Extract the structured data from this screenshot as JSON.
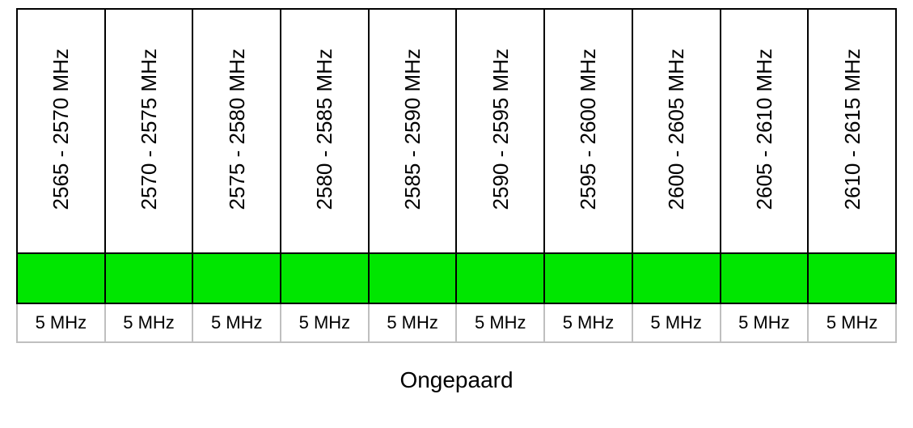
{
  "spectrum_table": {
    "type": "table",
    "caption": "Ongepaard",
    "caption_fontsize": 28,
    "range_fontsize": 26,
    "bw_fontsize": 22,
    "border_color_main": "#000000",
    "border_color_bw_row": "#bfbfbf",
    "background_color": "#ffffff",
    "text_color": "#000000",
    "columns": [
      {
        "range": "2565 - 2570 MHz",
        "block_color": "#00e600",
        "bandwidth": "5 MHz"
      },
      {
        "range": "2570 - 2575 MHz",
        "block_color": "#00e600",
        "bandwidth": "5 MHz"
      },
      {
        "range": "2575 - 2580 MHz",
        "block_color": "#00e600",
        "bandwidth": "5 MHz"
      },
      {
        "range": "2580 - 2585 MHz",
        "block_color": "#00e600",
        "bandwidth": "5 MHz"
      },
      {
        "range": "2585 - 2590 MHz",
        "block_color": "#00e600",
        "bandwidth": "5 MHz"
      },
      {
        "range": "2590 - 2595 MHz",
        "block_color": "#00e600",
        "bandwidth": "5 MHz"
      },
      {
        "range": "2595 - 2600 MHz",
        "block_color": "#00e600",
        "bandwidth": "5 MHz"
      },
      {
        "range": "2600 - 2605 MHz",
        "block_color": "#00e600",
        "bandwidth": "5 MHz"
      },
      {
        "range": "2605 - 2610 MHz",
        "block_color": "#00e600",
        "bandwidth": "5 MHz"
      },
      {
        "range": "2610 - 2615 MHz",
        "block_color": "#00e600",
        "bandwidth": "5 MHz"
      }
    ]
  }
}
